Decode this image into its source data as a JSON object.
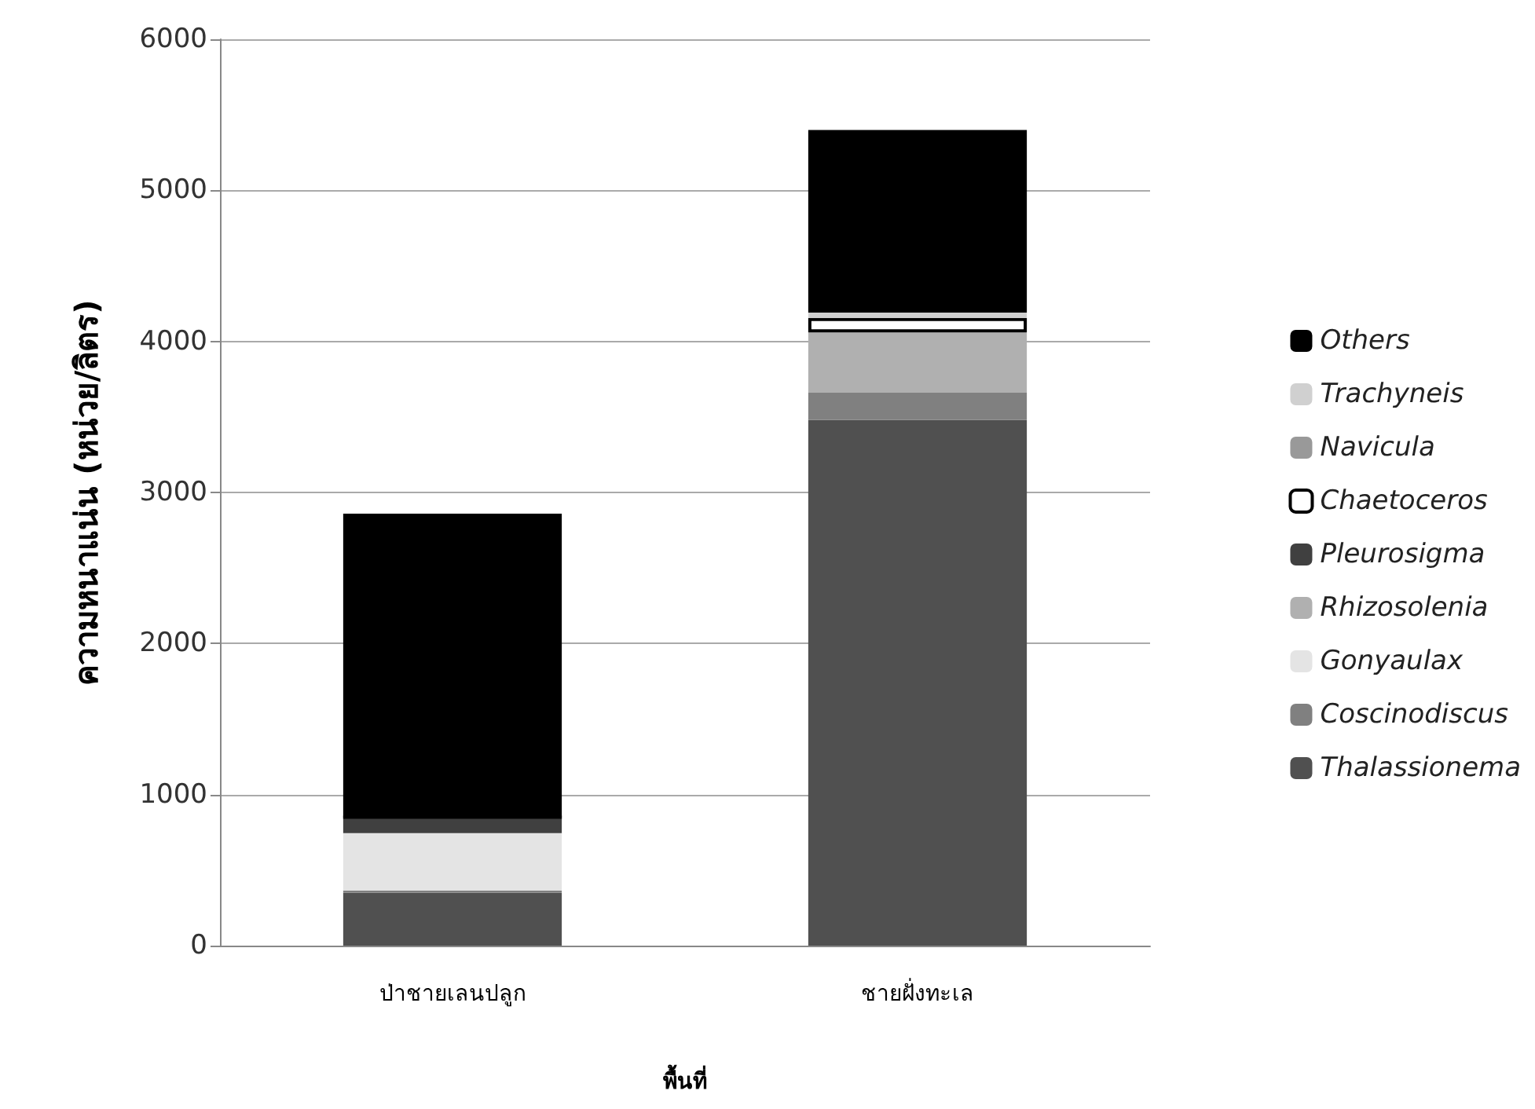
{
  "chart_data": {
    "type": "bar",
    "stacked": true,
    "xlabel": "พื้นที่",
    "ylabel": "ความหนาแน่น (หน่วย/ลิตร)",
    "categories": [
      "ป่าชายเลนปลูก",
      "ชายฝั่งทะเล"
    ],
    "series": [
      {
        "name": "Thalassionema",
        "color": "#505050",
        "values": [
          350,
          3480
        ]
      },
      {
        "name": "Coscinodiscus",
        "color": "#808080",
        "values": [
          15,
          180
        ]
      },
      {
        "name": "Gonyaulax",
        "color": "#e4e4e4",
        "values": [
          380,
          0
        ]
      },
      {
        "name": "Rhizosolenia",
        "color": "#b0b0b0",
        "values": [
          0,
          400
        ]
      },
      {
        "name": "Pleurosigma",
        "color": "#404040",
        "values": [
          105,
          0
        ]
      },
      {
        "name": "Chaetoceros",
        "color": "#ffffff",
        "values": [
          0,
          95
        ]
      },
      {
        "name": "Navicula",
        "color": "#999999",
        "values": [
          0,
          0
        ]
      },
      {
        "name": "Trachyneis",
        "color": "#d0d0d0",
        "values": [
          0,
          35
        ]
      },
      {
        "name": "Others",
        "color": "#000000",
        "values": [
          2010,
          1210
        ]
      }
    ],
    "ylim": [
      0,
      6000
    ],
    "yticks": [
      0,
      1000,
      2000,
      3000,
      4000,
      5000,
      6000
    ],
    "grid": "y",
    "legend": "right"
  }
}
